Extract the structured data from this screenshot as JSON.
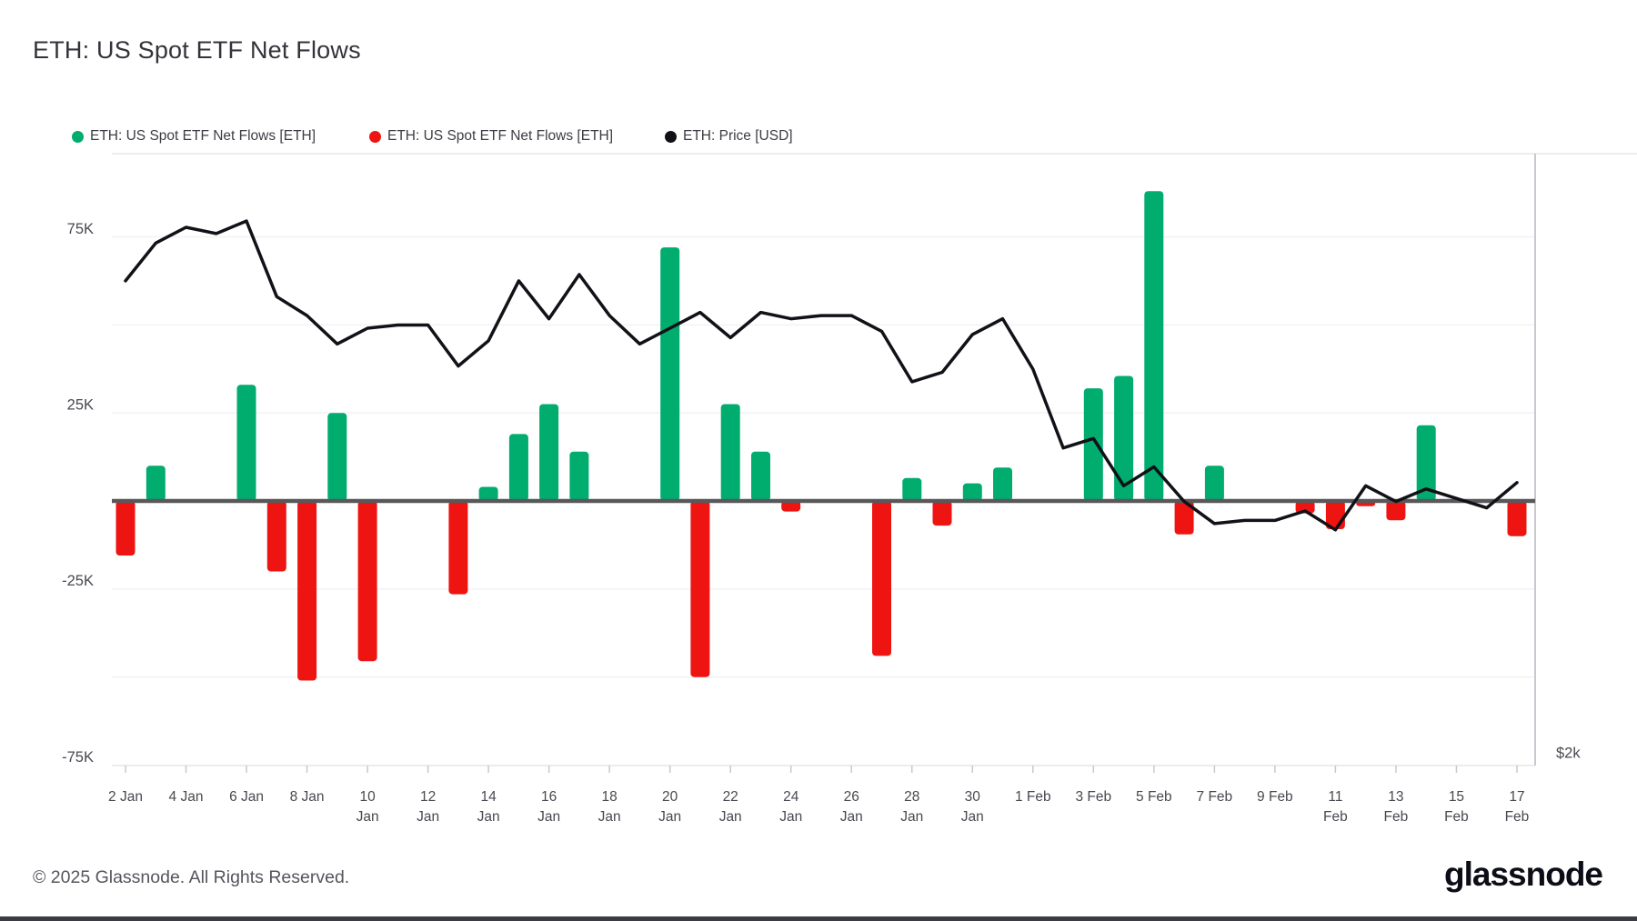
{
  "page": {
    "title": "ETH: US Spot ETF Net Flows"
  },
  "legend": {
    "items": [
      {
        "id": "netflow-positive",
        "label": "ETH: US Spot ETF Net Flows [ETH]",
        "color": "#00ac6e"
      },
      {
        "id": "netflow-negative",
        "label": "ETH: US Spot ETF Net Flows [ETH]",
        "color": "#ee1412"
      },
      {
        "id": "price",
        "label": "ETH: Price [USD]",
        "color": "#111118"
      }
    ]
  },
  "axes": {
    "y_left": [
      {
        "value": 75000,
        "label": "75K"
      },
      {
        "value": 25000,
        "label": "25K"
      },
      {
        "value": -25000,
        "label": "-25K"
      },
      {
        "value": -75000,
        "label": "-75K"
      }
    ],
    "grid_values": [
      75000,
      50000,
      25000,
      -25000,
      -50000
    ],
    "y_right_label": {
      "text": "$2k",
      "value": 2000
    },
    "x_ticks": [
      {
        "day": 0,
        "line1": "2 Jan",
        "line2": ""
      },
      {
        "day": 2,
        "line1": "4 Jan",
        "line2": ""
      },
      {
        "day": 4,
        "line1": "6 Jan",
        "line2": ""
      },
      {
        "day": 6,
        "line1": "8 Jan",
        "line2": ""
      },
      {
        "day": 8,
        "line1": "10",
        "line2": "Jan"
      },
      {
        "day": 10,
        "line1": "12",
        "line2": "Jan"
      },
      {
        "day": 12,
        "line1": "14",
        "line2": "Jan"
      },
      {
        "day": 14,
        "line1": "16",
        "line2": "Jan"
      },
      {
        "day": 16,
        "line1": "18",
        "line2": "Jan"
      },
      {
        "day": 18,
        "line1": "20",
        "line2": "Jan"
      },
      {
        "day": 20,
        "line1": "22",
        "line2": "Jan"
      },
      {
        "day": 22,
        "line1": "24",
        "line2": "Jan"
      },
      {
        "day": 24,
        "line1": "26",
        "line2": "Jan"
      },
      {
        "day": 26,
        "line1": "28",
        "line2": "Jan"
      },
      {
        "day": 28,
        "line1": "30",
        "line2": "Jan"
      },
      {
        "day": 30,
        "line1": "1 Feb",
        "line2": ""
      },
      {
        "day": 32,
        "line1": "3 Feb",
        "line2": ""
      },
      {
        "day": 34,
        "line1": "5 Feb",
        "line2": ""
      },
      {
        "day": 36,
        "line1": "7 Feb",
        "line2": ""
      },
      {
        "day": 38,
        "line1": "9 Feb",
        "line2": ""
      },
      {
        "day": 40,
        "line1": "11",
        "line2": "Feb"
      },
      {
        "day": 42,
        "line1": "13",
        "line2": "Feb"
      },
      {
        "day": 44,
        "line1": "15",
        "line2": "Feb"
      },
      {
        "day": 46,
        "line1": "17",
        "line2": "Feb"
      }
    ]
  },
  "footer": {
    "copyright": "© 2025 Glassnode. All Rights Reserved.",
    "brand": "glassnode"
  },
  "colors": {
    "positive": "#00ac6e",
    "negative": "#ee1412",
    "price_line": "#111118",
    "zero_line": "#58585a",
    "grid_line": "#f2f2f4",
    "axis_text": "#494951",
    "plot_border": "#e6e6ea",
    "right_border": "#c8c8cf",
    "tick": "#c8c8cf",
    "title_text": "#33333b",
    "footer_text": "#55555d",
    "brand_text": "#0d0d17",
    "bottom_bar": "#3b3b42"
  },
  "chart_data": {
    "type": "bar",
    "subtype": "bar-line-combo",
    "title": "ETH: US Spot ETF Net Flows",
    "categories": [
      "2 Jan",
      "3 Jan",
      "4 Jan",
      "5 Jan",
      "6 Jan",
      "7 Jan",
      "8 Jan",
      "9 Jan",
      "10 Jan",
      "11 Jan",
      "12 Jan",
      "13 Jan",
      "14 Jan",
      "15 Jan",
      "16 Jan",
      "17 Jan",
      "18 Jan",
      "19 Jan",
      "20 Jan",
      "21 Jan",
      "22 Jan",
      "23 Jan",
      "24 Jan",
      "25 Jan",
      "26 Jan",
      "27 Jan",
      "28 Jan",
      "29 Jan",
      "30 Jan",
      "31 Jan",
      "1 Feb",
      "2 Feb",
      "3 Feb",
      "4 Feb",
      "5 Feb",
      "6 Feb",
      "7 Feb",
      "8 Feb",
      "9 Feb",
      "10 Feb",
      "11 Feb",
      "12 Feb",
      "13 Feb",
      "14 Feb",
      "15 Feb",
      "16 Feb",
      "17 Feb"
    ],
    "series": [
      {
        "name": "ETH: US Spot ETF Net Flows [ETH]",
        "type": "bar",
        "unit": "ETH",
        "axis": "left",
        "positive_color": "#00ac6e",
        "negative_color": "#ee1412",
        "values": [
          -15500,
          10000,
          0,
          0,
          33000,
          -20000,
          -51000,
          25000,
          -45500,
          0,
          0,
          -26500,
          4000,
          19000,
          27500,
          14000,
          0,
          0,
          72000,
          -50000,
          27500,
          14000,
          -3000,
          0,
          0,
          -44000,
          6500,
          -7000,
          5000,
          9500,
          0,
          0,
          32000,
          35500,
          88000,
          -9500,
          10000,
          0,
          0,
          -3500,
          -8000,
          -1500,
          -5500,
          21500,
          0,
          0,
          -10000
        ]
      },
      {
        "name": "ETH: Price [USD]",
        "type": "line",
        "unit": "USD",
        "axis": "right",
        "color": "#111118",
        "values": [
          3500,
          3620,
          3670,
          3650,
          3690,
          3450,
          3390,
          3300,
          3350,
          3360,
          3360,
          3230,
          3310,
          3500,
          3380,
          3520,
          3390,
          3300,
          3350,
          3400,
          3320,
          3400,
          3380,
          3390,
          3390,
          3340,
          3180,
          3210,
          3330,
          3380,
          3220,
          2970,
          3000,
          2850,
          2910,
          2800,
          2730,
          2740,
          2740,
          2770,
          2710,
          2850,
          2800,
          2840,
          2810,
          2780,
          2860
        ]
      }
    ],
    "ylim_left": [
      -75000,
      98500
    ],
    "y_left_labeled_ticks": [
      "75K",
      "25K",
      "-25K",
      "-75K"
    ],
    "y_right_visible_label": "$2k",
    "legend_position": "top",
    "grid": "horizontal"
  }
}
